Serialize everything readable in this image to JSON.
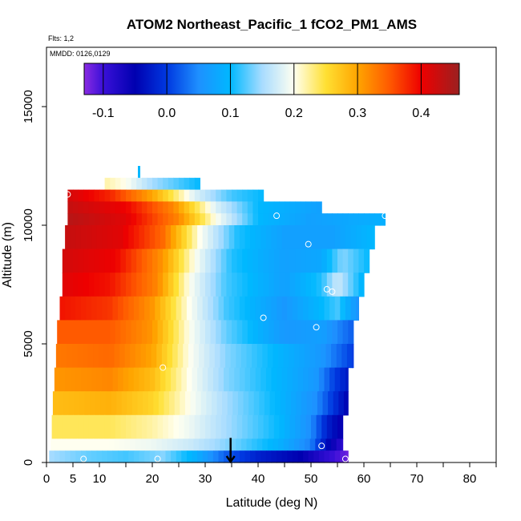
{
  "header": {
    "title": "ATOM2 Northeast_Pacific_1 fCO2_PM1_AMS",
    "flights": "Flts: 1,2",
    "dates": "MMDD: 0126,0129"
  },
  "colors": {
    "background": "#ffffff",
    "axis": "#000000",
    "marker": "#ffffff",
    "arrow": "#000000"
  },
  "chart_data": {
    "type": "heatmap",
    "title": "ATOM2 Northeast_Pacific_1 fCO2_PM1_AMS",
    "xlabel": "Latitude (deg N)",
    "ylabel": "Altitude (m)",
    "xlim": [
      0,
      85
    ],
    "ylim": [
      0,
      17500
    ],
    "x_ticks": [
      0,
      5,
      10,
      20,
      30,
      40,
      50,
      60,
      70,
      80
    ],
    "x_minor_ticks": [
      15,
      25,
      35,
      45,
      55,
      65,
      75,
      85
    ],
    "y_ticks": [
      0,
      5000,
      10000,
      15000
    ],
    "colorbar": {
      "range": [
        -0.13,
        0.46
      ],
      "ticks": [
        -0.1,
        0.0,
        0.1,
        0.2,
        0.3,
        0.4
      ],
      "tick_labels": [
        "-0.1",
        "0.0",
        "0.1",
        "0.2",
        "0.3",
        "0.4"
      ],
      "stops": [
        {
          "value": -0.13,
          "color": "#8a2be2"
        },
        {
          "value": -0.1,
          "color": "#3a10d8"
        },
        {
          "value": -0.05,
          "color": "#0000b0"
        },
        {
          "value": 0.0,
          "color": "#0038e0"
        },
        {
          "value": 0.05,
          "color": "#1e90ff"
        },
        {
          "value": 0.1,
          "color": "#00b8ff"
        },
        {
          "value": 0.15,
          "color": "#a8dcff"
        },
        {
          "value": 0.2,
          "color": "#fffff0"
        },
        {
          "value": 0.25,
          "color": "#ffe033"
        },
        {
          "value": 0.3,
          "color": "#ffa500"
        },
        {
          "value": 0.35,
          "color": "#ff5a00"
        },
        {
          "value": 0.4,
          "color": "#ee0000"
        },
        {
          "value": 0.46,
          "color": "#9b2020"
        }
      ]
    },
    "curtain_rows": [
      {
        "alt_bottom": 11500,
        "alt_top": 12000,
        "lat_start": 11,
        "lat_end": 29,
        "knots": [
          [
            11,
            0.22
          ],
          [
            15,
            0.2
          ],
          [
            20,
            0.15
          ],
          [
            29,
            0.1
          ]
        ]
      },
      {
        "alt_bottom": 11000,
        "alt_top": 11500,
        "lat_start": 4,
        "lat_end": 41,
        "knots": [
          [
            4,
            0.42
          ],
          [
            12,
            0.38
          ],
          [
            20,
            0.3
          ],
          [
            28,
            0.18
          ],
          [
            35,
            0.12
          ],
          [
            41,
            0.1
          ]
        ]
      },
      {
        "alt_bottom": 10500,
        "alt_top": 11000,
        "lat_start": 4,
        "lat_end": 52,
        "knots": [
          [
            4,
            0.43
          ],
          [
            15,
            0.4
          ],
          [
            24,
            0.32
          ],
          [
            32,
            0.18
          ],
          [
            40,
            0.1
          ],
          [
            52,
            0.07
          ]
        ]
      },
      {
        "alt_bottom": 10000,
        "alt_top": 10500,
        "lat_start": 4,
        "lat_end": 64,
        "knots": [
          [
            4,
            0.44
          ],
          [
            15,
            0.41
          ],
          [
            25,
            0.32
          ],
          [
            32,
            0.2
          ],
          [
            40,
            0.1
          ],
          [
            50,
            0.07
          ],
          [
            64,
            0.09
          ]
        ]
      },
      {
        "alt_bottom": 9000,
        "alt_top": 10000,
        "lat_start": 3.5,
        "lat_end": 62,
        "knots": [
          [
            3.5,
            0.43
          ],
          [
            14,
            0.41
          ],
          [
            22,
            0.34
          ],
          [
            29,
            0.2
          ],
          [
            36,
            0.11
          ],
          [
            45,
            0.07
          ],
          [
            54,
            0.07
          ],
          [
            62,
            0.1
          ]
        ]
      },
      {
        "alt_bottom": 8000,
        "alt_top": 9000,
        "lat_start": 3,
        "lat_end": 61,
        "knots": [
          [
            3,
            0.42
          ],
          [
            13,
            0.4
          ],
          [
            22,
            0.31
          ],
          [
            28,
            0.2
          ],
          [
            35,
            0.11
          ],
          [
            45,
            0.07
          ],
          [
            52,
            0.08
          ],
          [
            56,
            0.14
          ],
          [
            61,
            0.1
          ]
        ]
      },
      {
        "alt_bottom": 7000,
        "alt_top": 8000,
        "lat_start": 3,
        "lat_end": 60,
        "knots": [
          [
            3,
            0.41
          ],
          [
            12,
            0.39
          ],
          [
            21,
            0.32
          ],
          [
            27,
            0.2
          ],
          [
            34,
            0.12
          ],
          [
            45,
            0.07
          ],
          [
            52,
            0.11
          ],
          [
            55,
            0.17
          ],
          [
            60,
            0.09
          ]
        ]
      },
      {
        "alt_bottom": 6000,
        "alt_top": 7000,
        "lat_start": 2.5,
        "lat_end": 59,
        "knots": [
          [
            2.5,
            0.39
          ],
          [
            12,
            0.37
          ],
          [
            20,
            0.31
          ],
          [
            27,
            0.2
          ],
          [
            34,
            0.12
          ],
          [
            45,
            0.06
          ],
          [
            52,
            0.1
          ],
          [
            55,
            0.12
          ],
          [
            59,
            0.05
          ]
        ]
      },
      {
        "alt_bottom": 5000,
        "alt_top": 6000,
        "lat_start": 2,
        "lat_end": 58,
        "knots": [
          [
            2,
            0.35
          ],
          [
            12,
            0.35
          ],
          [
            20,
            0.31
          ],
          [
            27,
            0.2
          ],
          [
            34,
            0.13
          ],
          [
            45,
            0.06
          ],
          [
            52,
            0.07
          ],
          [
            58,
            0.02
          ]
        ]
      },
      {
        "alt_bottom": 4000,
        "alt_top": 5000,
        "lat_start": 1.8,
        "lat_end": 58,
        "knots": [
          [
            1.8,
            0.33
          ],
          [
            12,
            0.34
          ],
          [
            20,
            0.3
          ],
          [
            27,
            0.2
          ],
          [
            34,
            0.14
          ],
          [
            45,
            0.09
          ],
          [
            52,
            0.06
          ],
          [
            58,
            0.0
          ]
        ]
      },
      {
        "alt_bottom": 3000,
        "alt_top": 4000,
        "lat_start": 1.5,
        "lat_end": 57,
        "knots": [
          [
            1.5,
            0.31
          ],
          [
            12,
            0.32
          ],
          [
            20,
            0.28
          ],
          [
            27,
            0.2
          ],
          [
            34,
            0.14
          ],
          [
            45,
            0.09
          ],
          [
            51,
            0.06
          ],
          [
            54,
            0.01
          ],
          [
            57,
            -0.03
          ]
        ]
      },
      {
        "alt_bottom": 2000,
        "alt_top": 3000,
        "lat_start": 1.2,
        "lat_end": 57,
        "knots": [
          [
            1.2,
            0.28
          ],
          [
            12,
            0.29
          ],
          [
            20,
            0.26
          ],
          [
            27,
            0.2
          ],
          [
            34,
            0.15
          ],
          [
            45,
            0.09
          ],
          [
            51,
            0.05
          ],
          [
            54,
            0.0
          ],
          [
            57,
            -0.05
          ]
        ]
      },
      {
        "alt_bottom": 1000,
        "alt_top": 2000,
        "lat_start": 1,
        "lat_end": 56,
        "knots": [
          [
            1,
            0.24
          ],
          [
            12,
            0.24
          ],
          [
            20,
            0.22
          ],
          [
            27,
            0.19
          ],
          [
            34,
            0.15
          ],
          [
            44,
            0.1
          ],
          [
            50,
            0.05
          ],
          [
            53,
            -0.02
          ],
          [
            56,
            -0.06
          ]
        ]
      },
      {
        "alt_bottom": 500,
        "alt_top": 1000,
        "lat_start": 0.8,
        "lat_end": 56,
        "knots": [
          [
            0.8,
            0.2
          ],
          [
            12,
            0.2
          ],
          [
            20,
            0.19
          ],
          [
            27,
            0.17
          ],
          [
            34,
            0.14
          ],
          [
            44,
            0.09
          ],
          [
            50,
            0.04
          ],
          [
            53,
            -0.04
          ],
          [
            56,
            -0.09
          ]
        ]
      },
      {
        "alt_bottom": 0,
        "alt_top": 500,
        "lat_start": 0.5,
        "lat_end": 57,
        "knots": [
          [
            0.5,
            0.15
          ],
          [
            8,
            0.13
          ],
          [
            15,
            0.12
          ],
          [
            22,
            0.14
          ],
          [
            28,
            0.09
          ],
          [
            34,
            0.02
          ],
          [
            40,
            -0.02
          ],
          [
            48,
            -0.05
          ],
          [
            53,
            -0.09
          ],
          [
            57,
            -0.12
          ]
        ]
      }
    ],
    "spike": {
      "lat": 17.5,
      "alt_bottom": 12000,
      "alt_top": 12500,
      "value": 0.1
    },
    "sample_points": [
      {
        "lat": 4,
        "alt": 11300
      },
      {
        "lat": 43.5,
        "alt": 10400
      },
      {
        "lat": 64,
        "alt": 10400
      },
      {
        "lat": 49.5,
        "alt": 9200
      },
      {
        "lat": 53,
        "alt": 7300
      },
      {
        "lat": 54,
        "alt": 7200
      },
      {
        "lat": 41,
        "alt": 6100
      },
      {
        "lat": 51,
        "alt": 5700
      },
      {
        "lat": 22,
        "alt": 4000
      },
      {
        "lat": 52,
        "alt": 700
      },
      {
        "lat": 7,
        "alt": 150
      },
      {
        "lat": 21,
        "alt": 150
      },
      {
        "lat": 56.5,
        "alt": 150
      }
    ],
    "arrow": {
      "lat": 34.8,
      "alt_top": 700,
      "alt_bottom": 0
    }
  }
}
